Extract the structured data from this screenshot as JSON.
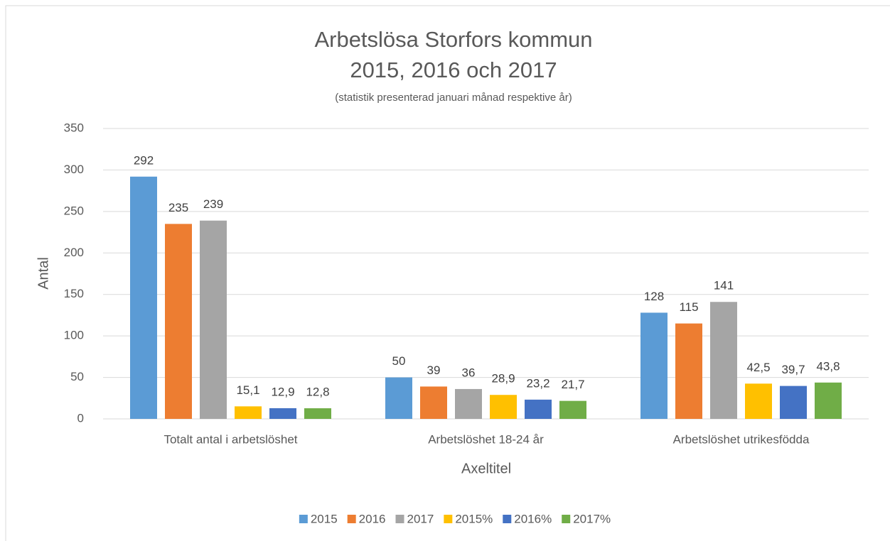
{
  "chart_data": {
    "type": "bar",
    "title": [
      "Arbetslösa Storfors kommun",
      "2015, 2016 och 2017"
    ],
    "subtitle": "(statistik presenterad januari månad respektive år)",
    "y_label": "Antal",
    "x_label": "Axeltitel",
    "categories": [
      "Totalt antal i arbetslöshet",
      "Arbetslöshet 18-24 år",
      "Arbetslöshet utrikesfödda"
    ],
    "series": [
      {
        "name": "2015",
        "color": "#5b9bd5",
        "values": [
          292,
          50,
          128
        ]
      },
      {
        "name": "2016",
        "color": "#ed7d31",
        "values": [
          235,
          39,
          115
        ]
      },
      {
        "name": "2017",
        "color": "#a5a5a5",
        "values": [
          239,
          36,
          141
        ]
      },
      {
        "name": "2015%",
        "color": "#ffc000",
        "values": [
          15.1,
          28.9,
          42.5
        ],
        "value_labels": [
          "15,1",
          "28,9",
          "42,5"
        ]
      },
      {
        "name": "2016%",
        "color": "#4472c4",
        "values": [
          12.9,
          23.2,
          39.7
        ],
        "value_labels": [
          "12,9",
          "23,2",
          "39,7"
        ]
      },
      {
        "name": "2017%",
        "color": "#70ad47",
        "values": [
          12.8,
          21.7,
          43.8
        ],
        "value_labels": [
          "12,8",
          "21,7",
          "43,8"
        ]
      }
    ],
    "ylim": [
      0,
      350
    ],
    "yticks": [
      0,
      50,
      100,
      150,
      200,
      250,
      300,
      350
    ],
    "grid": true,
    "legend": "bottom"
  }
}
